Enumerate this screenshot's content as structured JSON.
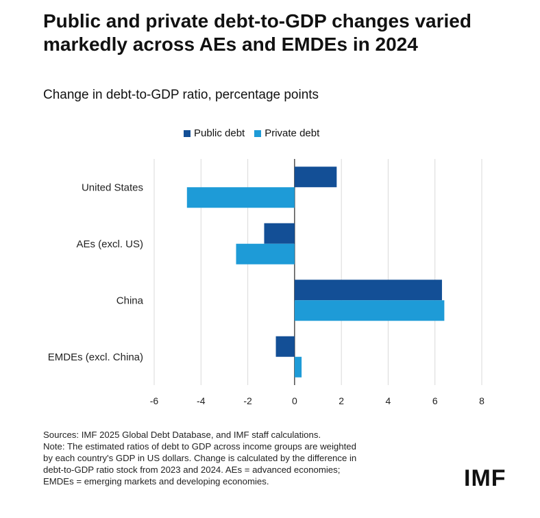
{
  "header": {
    "title": "Public and private debt-to-GDP changes varied markedly across AEs and EMDEs in 2024"
  },
  "chart_data": {
    "type": "bar",
    "orientation": "horizontal",
    "title": "Public and private debt-to-GDP changes varied markedly across AEs and EMDEs in 2024",
    "subtitle": "Change in debt-to-GDP ratio, percentage points",
    "categories": [
      "United States",
      "AEs (excl. US)",
      "China",
      "EMDEs (excl. China)"
    ],
    "series": [
      {
        "name": "Public debt",
        "color": "#134f96",
        "values": [
          1.8,
          -1.3,
          6.3,
          -0.8
        ]
      },
      {
        "name": "Private debt",
        "color": "#1e9bd7",
        "values": [
          -4.6,
          -2.5,
          6.4,
          0.3
        ]
      }
    ],
    "xticks": [
      "-6",
      "-4",
      "-2",
      "0",
      "2",
      "4",
      "6",
      "8"
    ],
    "xtick_values": [
      -6,
      -4,
      -2,
      0,
      2,
      4,
      6,
      8
    ],
    "xlim": [
      -6,
      8
    ],
    "grid": "vertical",
    "legend_position": "top"
  },
  "footer": {
    "notes": [
      "Sources: IMF 2025 Global Debt Database, and IMF staff calculations.",
      "Note: The estimated ratios of debt to GDP across income groups are weighted",
      "by each country's GDP in US dollars. Change is calculated by the difference in",
      "debt-to-GDP ratio stock from 2023 and 2024. AEs = advanced economies;",
      "EMDEs = emerging markets and developing economies."
    ],
    "logo": "IMF"
  }
}
